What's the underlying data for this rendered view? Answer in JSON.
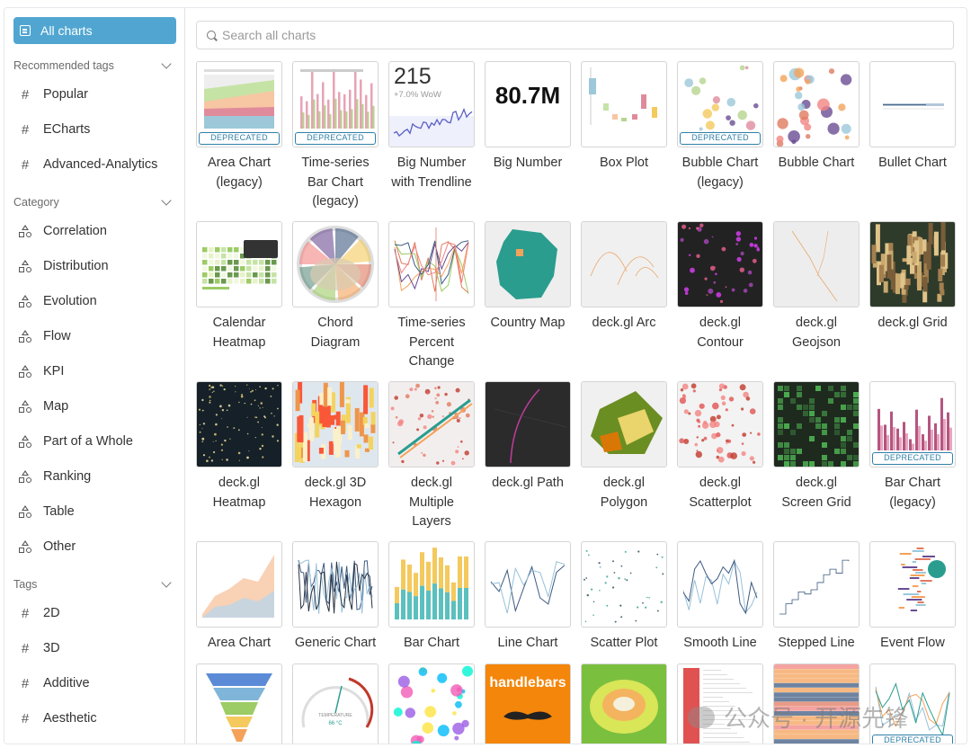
{
  "sidebar": {
    "all_charts": "All charts",
    "recommended_header": "Recommended tags",
    "recommended": [
      "Popular",
      "ECharts",
      "Advanced-Analytics"
    ],
    "category_header": "Category",
    "categories": [
      "Correlation",
      "Distribution",
      "Evolution",
      "Flow",
      "KPI",
      "Map",
      "Part of a Whole",
      "Ranking",
      "Table",
      "Other"
    ],
    "tags_header": "Tags",
    "tags": [
      "2D",
      "3D",
      "Additive",
      "Aesthetic"
    ]
  },
  "search": {
    "placeholder": "Search all charts",
    "value": ""
  },
  "deprecated_label": "DEPRECATED",
  "big_number_value": "80.7M",
  "big_number_trend": {
    "value": "215",
    "delta": "+7.0% WoW"
  },
  "thumb_text": {
    "handlebars": "handlebars",
    "temperature": "TEMPERATURE",
    "gauge_value": "66 °C"
  },
  "charts": [
    {
      "id": "area-legacy",
      "lines": [
        "Area Chart",
        "(legacy)"
      ],
      "deprecated": true
    },
    {
      "id": "ts-bar-legacy",
      "lines": [
        "Time-series",
        "Bar Chart",
        "(legacy)"
      ],
      "deprecated": true
    },
    {
      "id": "big-number-trend",
      "lines": [
        "Big Number",
        "with Trendline"
      ],
      "deprecated": false
    },
    {
      "id": "big-number",
      "lines": [
        "Big Number"
      ],
      "deprecated": false
    },
    {
      "id": "box-plot",
      "lines": [
        "Box Plot"
      ],
      "deprecated": false
    },
    {
      "id": "bubble-legacy",
      "lines": [
        "Bubble Chart",
        "(legacy)"
      ],
      "deprecated": true
    },
    {
      "id": "bubble",
      "lines": [
        "Bubble Chart"
      ],
      "deprecated": false
    },
    {
      "id": "bullet",
      "lines": [
        "Bullet Chart"
      ],
      "deprecated": false
    },
    {
      "id": "calendar",
      "lines": [
        "Calendar",
        "Heatmap"
      ],
      "deprecated": false
    },
    {
      "id": "chord",
      "lines": [
        "Chord",
        "Diagram"
      ],
      "deprecated": false
    },
    {
      "id": "ts-percent",
      "lines": [
        "Time-series",
        "Percent",
        "Change"
      ],
      "deprecated": false
    },
    {
      "id": "country-map",
      "lines": [
        "Country Map"
      ],
      "deprecated": false
    },
    {
      "id": "deck-arc",
      "lines": [
        "deck.gl Arc"
      ],
      "deprecated": false
    },
    {
      "id": "deck-contour",
      "lines": [
        "deck.gl",
        "Contour"
      ],
      "deprecated": false
    },
    {
      "id": "deck-geojson",
      "lines": [
        "deck.gl",
        "Geojson"
      ],
      "deprecated": false
    },
    {
      "id": "deck-grid",
      "lines": [
        "deck.gl Grid"
      ],
      "deprecated": false
    },
    {
      "id": "deck-heatmap",
      "lines": [
        "deck.gl",
        "Heatmap"
      ],
      "deprecated": false
    },
    {
      "id": "deck-hexagon",
      "lines": [
        "deck.gl 3D",
        "Hexagon"
      ],
      "deprecated": false
    },
    {
      "id": "deck-layers",
      "lines": [
        "deck.gl",
        "Multiple",
        "Layers"
      ],
      "deprecated": false
    },
    {
      "id": "deck-path",
      "lines": [
        "deck.gl Path"
      ],
      "deprecated": false
    },
    {
      "id": "deck-polygon",
      "lines": [
        "deck.gl",
        "Polygon"
      ],
      "deprecated": false
    },
    {
      "id": "deck-scatter",
      "lines": [
        "deck.gl",
        "Scatterplot"
      ],
      "deprecated": false
    },
    {
      "id": "deck-screengrid",
      "lines": [
        "deck.gl",
        "Screen Grid"
      ],
      "deprecated": false
    },
    {
      "id": "bar-legacy",
      "lines": [
        "Bar Chart",
        "(legacy)"
      ],
      "deprecated": true
    },
    {
      "id": "area",
      "lines": [
        "Area Chart"
      ],
      "deprecated": false
    },
    {
      "id": "generic",
      "lines": [
        "Generic Chart"
      ],
      "deprecated": false
    },
    {
      "id": "bar",
      "lines": [
        "Bar Chart"
      ],
      "deprecated": false
    },
    {
      "id": "line",
      "lines": [
        "Line Chart"
      ],
      "deprecated": false
    },
    {
      "id": "scatter",
      "lines": [
        "Scatter Plot"
      ],
      "deprecated": false
    },
    {
      "id": "smooth-line",
      "lines": [
        "Smooth Line"
      ],
      "deprecated": false
    },
    {
      "id": "stepped-line",
      "lines": [
        "Stepped Line"
      ],
      "deprecated": false
    },
    {
      "id": "event-flow",
      "lines": [
        "Event Flow"
      ],
      "deprecated": false
    },
    {
      "id": "funnel",
      "lines": [],
      "deprecated": false
    },
    {
      "id": "gauge",
      "lines": [],
      "deprecated": false
    },
    {
      "id": "graph",
      "lines": [],
      "deprecated": false
    },
    {
      "id": "handlebars",
      "lines": [],
      "deprecated": false
    },
    {
      "id": "heatmap",
      "lines": [],
      "deprecated": false
    },
    {
      "id": "histogram",
      "lines": [],
      "deprecated": false
    },
    {
      "id": "horizon",
      "lines": [],
      "deprecated": false
    },
    {
      "id": "line-legacy",
      "lines": [],
      "deprecated": true
    }
  ],
  "watermark": "公众号 · 开源先锋"
}
